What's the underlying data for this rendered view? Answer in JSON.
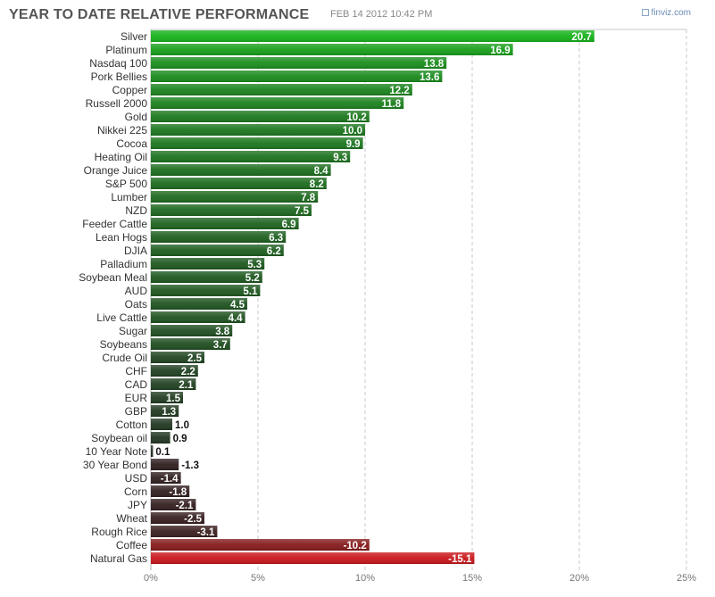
{
  "header": {
    "title": "YEAR TO DATE RELATIVE PERFORMANCE",
    "timestamp": "FEB 14 2012 10:42 PM",
    "brand": "finviz.com"
  },
  "colors": {
    "positive_strong": "#16b21a",
    "positive_dark": "#222b22",
    "negative_dark": "#2a1f1f",
    "negative_strong": "#c8161a",
    "grid": "#c8c8c8"
  },
  "chart_data": {
    "type": "bar",
    "orientation": "horizontal",
    "title": "YEAR TO DATE RELATIVE PERFORMANCE",
    "xlim": [
      -25,
      25
    ],
    "visible_xlim": [
      0,
      25
    ],
    "xticks": [
      0,
      5,
      10,
      15,
      20,
      25
    ],
    "xtick_labels": [
      "0%",
      "5%",
      "10%",
      "15%",
      "20%",
      "25%"
    ],
    "grid": true,
    "categories": [
      "Silver",
      "Platinum",
      "Nasdaq 100",
      "Pork Bellies",
      "Copper",
      "Russell 2000",
      "Gold",
      "Nikkei 225",
      "Cocoa",
      "Heating Oil",
      "Orange Juice",
      "S&P 500",
      "Lumber",
      "NZD",
      "Feeder Cattle",
      "Lean Hogs",
      "DJIA",
      "Palladium",
      "Soybean Meal",
      "AUD",
      "Oats",
      "Live Cattle",
      "Sugar",
      "Soybeans",
      "Crude Oil",
      "CHF",
      "CAD",
      "EUR",
      "GBP",
      "Cotton",
      "Soybean oil",
      "10 Year Note",
      "30 Year Bond",
      "USD",
      "Corn",
      "JPY",
      "Wheat",
      "Rough Rice",
      "Coffee",
      "Natural Gas"
    ],
    "values": [
      20.7,
      16.9,
      13.8,
      13.6,
      12.2,
      11.8,
      10.2,
      10.0,
      9.9,
      9.3,
      8.4,
      8.2,
      7.8,
      7.5,
      6.9,
      6.3,
      6.2,
      5.3,
      5.2,
      5.1,
      4.5,
      4.4,
      3.8,
      3.7,
      2.5,
      2.2,
      2.1,
      1.5,
      1.3,
      1.0,
      0.9,
      0.1,
      -1.3,
      -1.4,
      -1.8,
      -2.1,
      -2.5,
      -3.1,
      -10.2,
      -15.1
    ],
    "value_labels": [
      "20.7",
      "16.9",
      "13.8",
      "13.6",
      "12.2",
      "11.8",
      "10.2",
      "10.0",
      "9.9",
      "9.3",
      "8.4",
      "8.2",
      "7.8",
      "7.5",
      "6.9",
      "6.3",
      "6.2",
      "5.3",
      "5.2",
      "5.1",
      "4.5",
      "4.4",
      "3.8",
      "3.7",
      "2.5",
      "2.2",
      "2.1",
      "1.5",
      "1.3",
      "1.0",
      "0.9",
      "0.1",
      "-1.3",
      "-1.4",
      "-1.8",
      "-2.1",
      "-2.5",
      "-3.1",
      "-10.2",
      "-15.1"
    ]
  }
}
